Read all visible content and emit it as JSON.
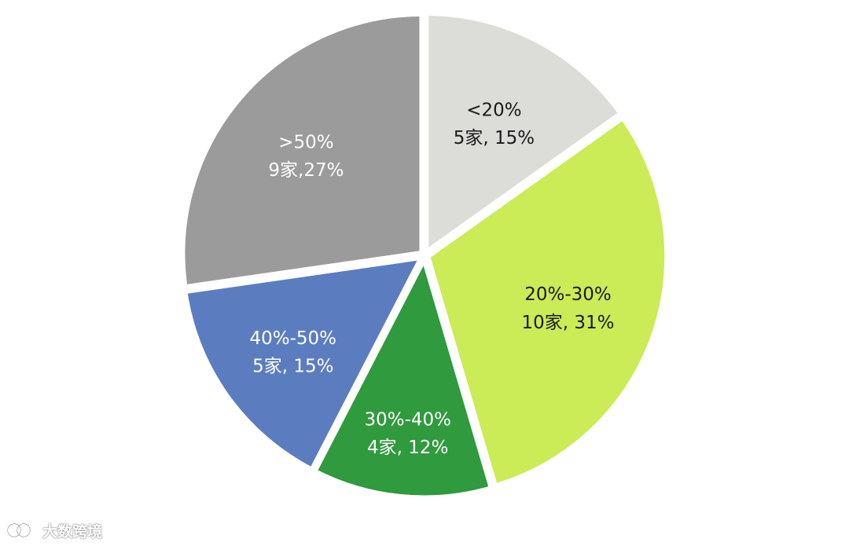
{
  "chart_data": {
    "type": "pie",
    "title": "",
    "start_angle_deg": 0,
    "direction": "clockwise",
    "slices": [
      {
        "label": "<20%",
        "count": "5家",
        "percent": 15,
        "value": 5,
        "color": "#dcdcd8",
        "text_color": "#1a1a1a"
      },
      {
        "label": "20%-30%",
        "count": "10家",
        "percent": 31,
        "value": 10,
        "color": "#cbeb57",
        "text_color": "#1a1a1a"
      },
      {
        "label": "30%-40%",
        "count": "4家",
        "percent": 12,
        "value": 4,
        "color": "#2f9a3e",
        "text_color": "#ffffff"
      },
      {
        "label": "40%-50%",
        "count": "5家",
        "percent": 15,
        "value": 5,
        "color": "#5b7dc0",
        "text_color": "#ffffff"
      },
      {
        "label": ">50%",
        "count": "9家",
        "percent": 27,
        "value": 9,
        "color": "#9b9b9b",
        "text_color": "#ffffff"
      }
    ],
    "slice_label_lines": [
      [
        "<20%",
        "5家, 15%"
      ],
      [
        "20%-30%",
        "10家, 31%"
      ],
      [
        "30%-40%",
        "4家, 12%"
      ],
      [
        "40%-50%",
        "5家, 15%"
      ],
      [
        ">50%",
        "9家,27%"
      ]
    ],
    "legend": "none"
  },
  "watermark": {
    "text": "大数跨境",
    "icon": "logo-icon"
  }
}
